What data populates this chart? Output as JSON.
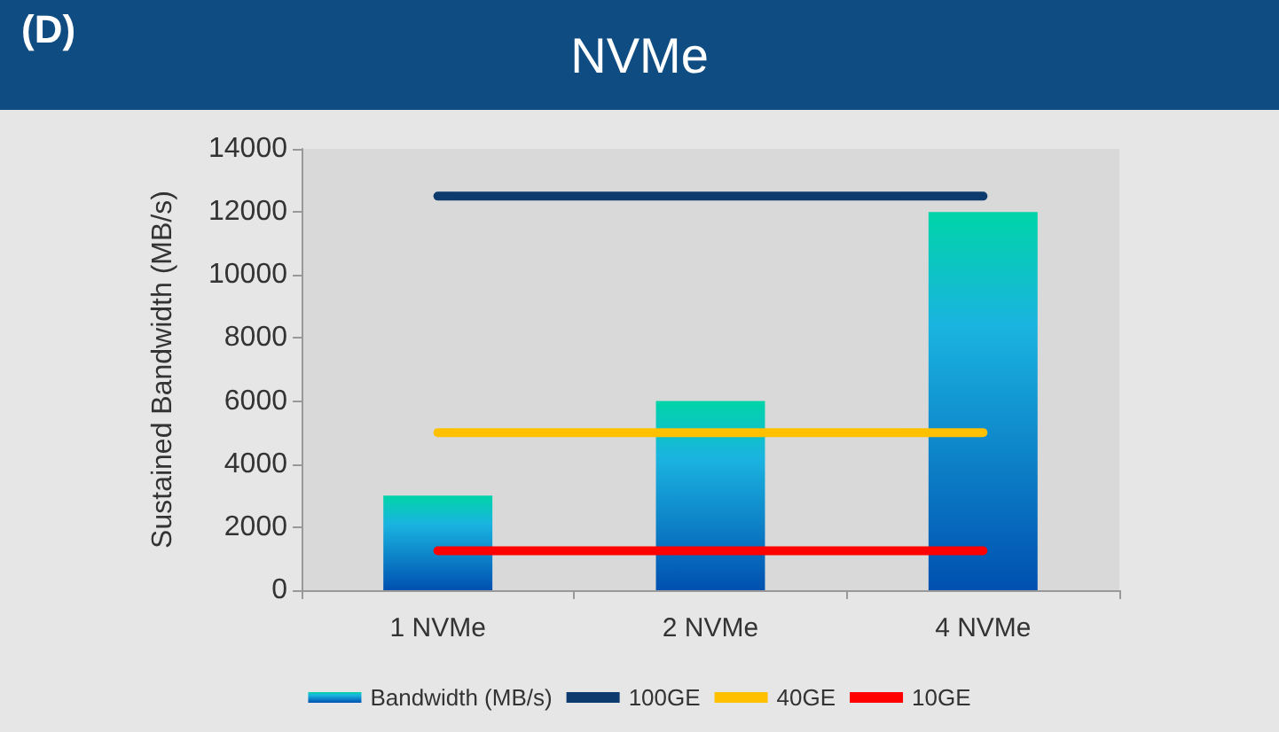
{
  "chart_data": {
    "type": "bar",
    "title": "NVMe",
    "annotations": [
      "(D)"
    ],
    "ylabel": "Sustained Bandwidth (MB/s)",
    "categories": [
      "1 NVMe",
      "2 NVMe",
      "4 NVMe"
    ],
    "series": [
      {
        "name": "Bandwidth (MB/s)",
        "color": "#1ab4e0",
        "values": [
          3000,
          6000,
          12000
        ]
      },
      {
        "name": "100GE",
        "type": "line",
        "color": "#0d3b6e",
        "values": [
          12500,
          12500,
          12500
        ]
      },
      {
        "name": "40GE",
        "type": "line",
        "color": "#ffc000",
        "values": [
          5000,
          5000,
          5000
        ]
      },
      {
        "name": "10GE",
        "type": "line",
        "color": "#ff0000",
        "values": [
          1250,
          1250,
          1250
        ]
      }
    ],
    "ylim": [
      0,
      14000
    ],
    "yticks": [
      0,
      2000,
      4000,
      6000,
      8000,
      10000,
      12000,
      14000
    ],
    "grid": false,
    "legend": "bottom",
    "marker": "none",
    "line_style": "solid"
  }
}
